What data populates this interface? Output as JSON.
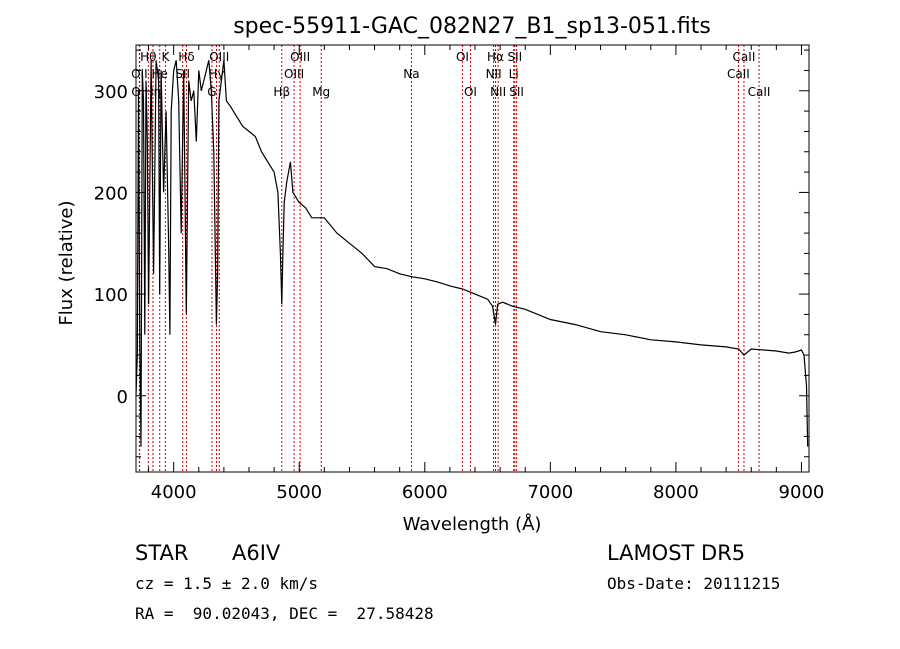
{
  "chart_data": {
    "type": "line",
    "title": "spec-55911-GAC_082N27_B1_sp13-051.fits",
    "xlabel": "Wavelength (Å)",
    "ylabel": "Flux (relative)",
    "xlim": [
      3700,
      9060
    ],
    "ylim": [
      -75,
      345
    ],
    "x_ticks": [
      4000,
      5000,
      6000,
      7000,
      8000,
      9000
    ],
    "y_ticks": [
      0,
      100,
      200,
      300
    ],
    "grid": false,
    "series": [
      {
        "x": [
          3700,
          3710,
          3720,
          3730,
          3740,
          3750,
          3760,
          3770,
          3780,
          3790,
          3800,
          3820,
          3840,
          3860,
          3880,
          3889,
          3900,
          3920,
          3940,
          3960,
          3970,
          3980,
          4000,
          4020,
          4040,
          4060,
          4080,
          4101,
          4120,
          4140,
          4160,
          4180,
          4200,
          4220,
          4250,
          4280,
          4300,
          4320,
          4340,
          4350,
          4360,
          4380,
          4400,
          4420,
          4450,
          4500,
          4550,
          4600,
          4650,
          4700,
          4750,
          4800,
          4830,
          4850,
          4861,
          4870,
          4880,
          4900,
          4930,
          4950,
          5000,
          5050,
          5100,
          5150,
          5200,
          5300,
          5400,
          5500,
          5600,
          5700,
          5800,
          5900,
          6000,
          6100,
          6200,
          6300,
          6400,
          6500,
          6540,
          6563,
          6580,
          6620,
          6700,
          6800,
          6900,
          7000,
          7200,
          7400,
          7600,
          7800,
          8000,
          8200,
          8400,
          8500,
          8542,
          8600,
          8700,
          8800,
          8900,
          8950,
          9000,
          9020,
          9040,
          9050
        ],
        "y": [
          0,
          40,
          300,
          50,
          -50,
          320,
          290,
          60,
          310,
          250,
          90,
          330,
          120,
          330,
          310,
          100,
          320,
          200,
          280,
          150,
          60,
          280,
          320,
          330,
          290,
          160,
          320,
          80,
          310,
          290,
          300,
          250,
          320,
          300,
          315,
          330,
          300,
          240,
          70,
          120,
          290,
          310,
          330,
          290,
          285,
          275,
          265,
          260,
          255,
          240,
          230,
          220,
          200,
          140,
          90,
          140,
          190,
          210,
          230,
          200,
          190,
          185,
          175,
          175,
          175,
          160,
          150,
          140,
          127,
          125,
          120,
          117,
          115,
          112,
          108,
          105,
          100,
          95,
          88,
          70,
          90,
          92,
          88,
          85,
          80,
          75,
          70,
          63,
          60,
          55,
          53,
          50,
          48,
          46,
          40,
          46,
          45,
          44,
          42,
          43,
          45,
          40,
          10,
          -50
        ]
      }
    ],
    "line_annotations": [
      {
        "label": "Hθ",
        "x": 3798,
        "row": 1
      },
      {
        "label": "OII",
        "x": 3727,
        "row": 2
      },
      {
        "label": "OII",
        "x": 3729,
        "row": 3
      },
      {
        "label": "K",
        "x": 3934,
        "row": 1
      },
      {
        "label": "He",
        "x": 3889,
        "row": 2
      },
      {
        "label": "Hη",
        "x": 3835,
        "row": 3
      },
      {
        "label": "Hδ",
        "x": 4102,
        "row": 1
      },
      {
        "label": "SII",
        "x": 4072,
        "row": 2
      },
      {
        "label": "OIII",
        "x": 4363,
        "row": 1
      },
      {
        "label": "Hγ",
        "x": 4341,
        "row": 2
      },
      {
        "label": "G",
        "x": 4305,
        "row": 3
      },
      {
        "label": "OIII",
        "x": 5007,
        "row": 1
      },
      {
        "label": "OIII",
        "x": 4959,
        "row": 2
      },
      {
        "label": "Hβ",
        "x": 4861,
        "row": 3
      },
      {
        "label": "Mg",
        "x": 5175,
        "row": 3
      },
      {
        "label": "Na",
        "x": 5894,
        "row": 2
      },
      {
        "label": "OI",
        "x": 6300,
        "row": 1
      },
      {
        "label": "OI",
        "x": 6364,
        "row": 3
      },
      {
        "label": "Hα",
        "x": 6563,
        "row": 1
      },
      {
        "label": "NII",
        "x": 6548,
        "row": 2
      },
      {
        "label": "NII",
        "x": 6584,
        "row": 3
      },
      {
        "label": "SII",
        "x": 6717,
        "row": 1
      },
      {
        "label": "Li",
        "x": 6708,
        "row": 2
      },
      {
        "label": "SII",
        "x": 6731,
        "row": 3
      },
      {
        "label": "CaII",
        "x": 8542,
        "row": 1
      },
      {
        "label": "CaII",
        "x": 8498,
        "row": 2
      },
      {
        "label": "CaII",
        "x": 8662,
        "row": 3
      }
    ]
  },
  "info": {
    "object_class": "STAR",
    "subclass": "A6IV",
    "survey": "LAMOST DR5",
    "redshift_text": "cz = 1.5 ± 2.0 km/s",
    "obs_date_text": "Obs-Date: 20111215",
    "coords_text": "RA =  90.02043, DEC =  27.58428"
  },
  "colors": {
    "line_marker": "#cc0000",
    "spectrum": "#000000"
  }
}
